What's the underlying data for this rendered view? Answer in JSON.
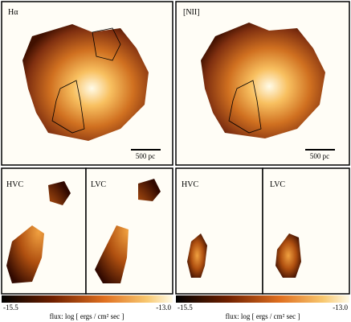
{
  "top_panels": [
    {
      "label": "Hα",
      "scale_bar": "500 pc"
    },
    {
      "label": "[NII]",
      "scale_bar": "500 pc"
    }
  ],
  "bottom_panels": [
    {
      "left": "HVC",
      "right": "LVC"
    },
    {
      "left": "HVC",
      "right": "LVC"
    }
  ],
  "colorbars": [
    {
      "min": "-15.5",
      "max": "-13.0",
      "caption": "flux: log [ ergs / cm² sec ]"
    },
    {
      "min": "-15.5",
      "max": "-13.0",
      "caption": "flux: log [ ergs / cm² sec ]"
    }
  ]
}
